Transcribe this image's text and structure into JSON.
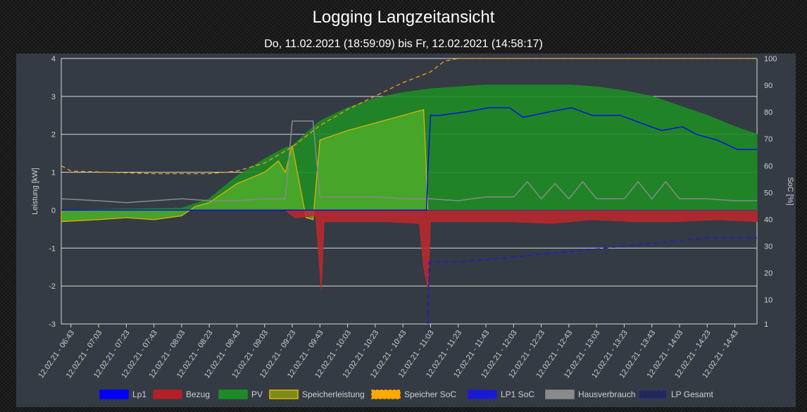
{
  "title": "Logging Langzeitansicht",
  "subtitle": "Do, 11.02.2021 (18:59:09) bis Fr, 12.02.2021 (14:58:17)",
  "chart_data": {
    "type": "line",
    "x_tick_labels": [
      "12.02.21 - 06:43",
      "12.02.21 - 07:03",
      "12.02.21 - 07:23",
      "12.02.21 - 07:43",
      "12.02.21 - 08:03",
      "12.02.21 - 08:23",
      "12.02.21 - 08:43",
      "12.02.21 - 09:03",
      "12.02.21 - 09:23",
      "12.02.21 - 09:43",
      "12.02.21 - 10:03",
      "12.02.21 - 10:23",
      "12.02.21 - 10:43",
      "12.02.21 - 11:03",
      "12.02.21 - 11:23",
      "12.02.21 - 11:43",
      "12.02.21 - 12:03",
      "12.02.21 - 12:23",
      "12.02.21 - 12:43",
      "12.02.21 - 13:03",
      "12.02.21 - 13:23",
      "12.02.21 - 13:43",
      "12.02.21 - 14:03",
      "12.02.21 - 14:23",
      "12.02.21 - 14:43"
    ],
    "x_range": [
      "06:36",
      "14:59"
    ],
    "y_left": {
      "label": "Leistung [kW]",
      "range": [
        -3,
        4
      ],
      "ticks": [
        4,
        3,
        2,
        1,
        0,
        -1,
        -2,
        -3
      ]
    },
    "y_right": {
      "label": "SoC [%]",
      "range": [
        1,
        100
      ],
      "ticks": [
        100,
        90,
        80,
        70,
        60,
        50,
        40,
        30,
        20,
        10,
        1
      ]
    },
    "grid": true,
    "legend_position": "bottom",
    "series": [
      {
        "name": "Lp1",
        "axis": "left",
        "color": "#0000ff",
        "style": "line",
        "points": [
          [
            "06:36",
            0.0
          ],
          [
            "11:00",
            0.0
          ],
          [
            "11:01",
            1.0
          ],
          [
            "11:03",
            2.5
          ],
          [
            "11:10",
            2.5
          ],
          [
            "11:30",
            2.6
          ],
          [
            "11:45",
            2.7
          ],
          [
            "12:00",
            2.7
          ],
          [
            "12:10",
            2.45
          ],
          [
            "12:30",
            2.6
          ],
          [
            "12:45",
            2.7
          ],
          [
            "13:00",
            2.5
          ],
          [
            "13:20",
            2.5
          ],
          [
            "13:35",
            2.3
          ],
          [
            "13:50",
            2.1
          ],
          [
            "14:05",
            2.2
          ],
          [
            "14:15",
            2.0
          ],
          [
            "14:30",
            1.85
          ],
          [
            "14:45",
            1.6
          ],
          [
            "14:59",
            1.6
          ]
        ]
      },
      {
        "name": "Bezug",
        "axis": "left",
        "color": "#c0282d",
        "style": "area",
        "points": [
          [
            "06:36",
            0.0
          ],
          [
            "08:03",
            0.0
          ],
          [
            "09:18",
            0.0
          ],
          [
            "09:25",
            -0.2
          ],
          [
            "09:40",
            -0.15
          ],
          [
            "09:44",
            -2.1
          ],
          [
            "09:46",
            -0.3
          ],
          [
            "10:03",
            -0.3
          ],
          [
            "10:30",
            -0.3
          ],
          [
            "10:55",
            -0.35
          ],
          [
            "10:58",
            -1.5
          ],
          [
            "11:01",
            -2.05
          ],
          [
            "11:03",
            -0.3
          ],
          [
            "11:30",
            -0.3
          ],
          [
            "12:00",
            -0.3
          ],
          [
            "12:30",
            -0.35
          ],
          [
            "13:00",
            -0.25
          ],
          [
            "13:30",
            -0.3
          ],
          [
            "14:00",
            -0.3
          ],
          [
            "14:30",
            -0.25
          ],
          [
            "14:59",
            -0.3
          ]
        ]
      },
      {
        "name": "PV",
        "axis": "left",
        "color": "#1e8c26",
        "style": "area",
        "points": [
          [
            "06:36",
            0.0
          ],
          [
            "08:03",
            0.05
          ],
          [
            "08:23",
            0.3
          ],
          [
            "08:43",
            0.9
          ],
          [
            "09:03",
            1.35
          ],
          [
            "09:18",
            1.65
          ],
          [
            "09:23",
            1.7
          ],
          [
            "09:43",
            2.35
          ],
          [
            "10:03",
            2.7
          ],
          [
            "10:23",
            2.95
          ],
          [
            "10:43",
            3.1
          ],
          [
            "11:03",
            3.2
          ],
          [
            "11:23",
            3.25
          ],
          [
            "11:43",
            3.3
          ],
          [
            "12:03",
            3.3
          ],
          [
            "12:23",
            3.3
          ],
          [
            "12:43",
            3.3
          ],
          [
            "13:03",
            3.25
          ],
          [
            "13:23",
            3.15
          ],
          [
            "13:43",
            3.0
          ],
          [
            "14:03",
            2.75
          ],
          [
            "14:23",
            2.5
          ],
          [
            "14:43",
            2.2
          ],
          [
            "14:59",
            2.0
          ]
        ]
      },
      {
        "name": "Speicherleistung",
        "axis": "left",
        "color": "#e8b400",
        "fill": "#4aa62a",
        "style": "area",
        "points": [
          [
            "06:36",
            -0.3
          ],
          [
            "07:03",
            -0.25
          ],
          [
            "07:23",
            -0.2
          ],
          [
            "07:43",
            -0.25
          ],
          [
            "08:03",
            -0.15
          ],
          [
            "08:13",
            0.1
          ],
          [
            "08:23",
            0.2
          ],
          [
            "08:43",
            0.7
          ],
          [
            "09:03",
            1.0
          ],
          [
            "09:13",
            1.3
          ],
          [
            "09:18",
            1.0
          ],
          [
            "09:23",
            1.7
          ],
          [
            "09:33",
            -0.2
          ],
          [
            "09:38",
            -0.25
          ],
          [
            "09:43",
            1.85
          ],
          [
            "10:03",
            2.1
          ],
          [
            "10:23",
            2.3
          ],
          [
            "10:43",
            2.5
          ],
          [
            "10:58",
            2.65
          ],
          [
            "11:00",
            1.0
          ],
          [
            "11:01",
            0.0
          ],
          [
            "14:59",
            0.0
          ]
        ]
      },
      {
        "name": "Speicher SoC",
        "axis": "right",
        "color": "#ffa800",
        "style": "dashed",
        "points": [
          [
            "06:36",
            60
          ],
          [
            "06:43",
            58
          ],
          [
            "07:43",
            57
          ],
          [
            "08:03",
            57
          ],
          [
            "08:23",
            57
          ],
          [
            "08:43",
            58
          ],
          [
            "09:03",
            61
          ],
          [
            "09:23",
            67
          ],
          [
            "09:43",
            75
          ],
          [
            "10:03",
            81
          ],
          [
            "10:23",
            86
          ],
          [
            "10:43",
            91
          ],
          [
            "11:03",
            95
          ],
          [
            "11:13",
            99
          ],
          [
            "11:23",
            100
          ],
          [
            "14:59",
            100
          ]
        ]
      },
      {
        "name": "LP1 SoC",
        "axis": "right",
        "color": "#1a1ad6",
        "style": "dashed",
        "points": [
          [
            "11:01",
            1
          ],
          [
            "11:02",
            24
          ],
          [
            "11:23",
            24
          ],
          [
            "11:43",
            25
          ],
          [
            "12:03",
            26
          ],
          [
            "12:23",
            27
          ],
          [
            "12:43",
            28
          ],
          [
            "13:03",
            29
          ],
          [
            "13:23",
            30
          ],
          [
            "13:43",
            31
          ],
          [
            "14:03",
            32
          ],
          [
            "14:23",
            33
          ],
          [
            "14:43",
            33
          ],
          [
            "14:59",
            33
          ]
        ]
      },
      {
        "name": "Hausverbrauch",
        "axis": "left",
        "color": "#8a8a8a",
        "style": "line",
        "points": [
          [
            "06:36",
            0.3
          ],
          [
            "07:03",
            0.25
          ],
          [
            "07:23",
            0.2
          ],
          [
            "07:43",
            0.25
          ],
          [
            "08:03",
            0.3
          ],
          [
            "08:23",
            0.25
          ],
          [
            "08:43",
            0.25
          ],
          [
            "09:03",
            0.3
          ],
          [
            "09:18",
            0.3
          ],
          [
            "09:23",
            2.35
          ],
          [
            "09:38",
            2.35
          ],
          [
            "09:43",
            0.35
          ],
          [
            "10:03",
            0.35
          ],
          [
            "10:23",
            0.35
          ],
          [
            "10:43",
            0.3
          ],
          [
            "11:03",
            0.3
          ],
          [
            "11:23",
            0.25
          ],
          [
            "11:43",
            0.35
          ],
          [
            "12:03",
            0.35
          ],
          [
            "12:13",
            0.75
          ],
          [
            "12:23",
            0.3
          ],
          [
            "12:33",
            0.7
          ],
          [
            "12:43",
            0.3
          ],
          [
            "12:53",
            0.75
          ],
          [
            "13:03",
            0.3
          ],
          [
            "13:23",
            0.3
          ],
          [
            "13:33",
            0.75
          ],
          [
            "13:43",
            0.3
          ],
          [
            "13:53",
            0.75
          ],
          [
            "14:03",
            0.3
          ],
          [
            "14:23",
            0.3
          ],
          [
            "14:43",
            0.25
          ],
          [
            "14:59",
            0.25
          ]
        ]
      },
      {
        "name": "LP Gesamt",
        "axis": "left",
        "color": "#303a7a",
        "style": "line",
        "points": [
          [
            "06:36",
            0.0
          ],
          [
            "14:59",
            0.0
          ]
        ]
      }
    ]
  }
}
